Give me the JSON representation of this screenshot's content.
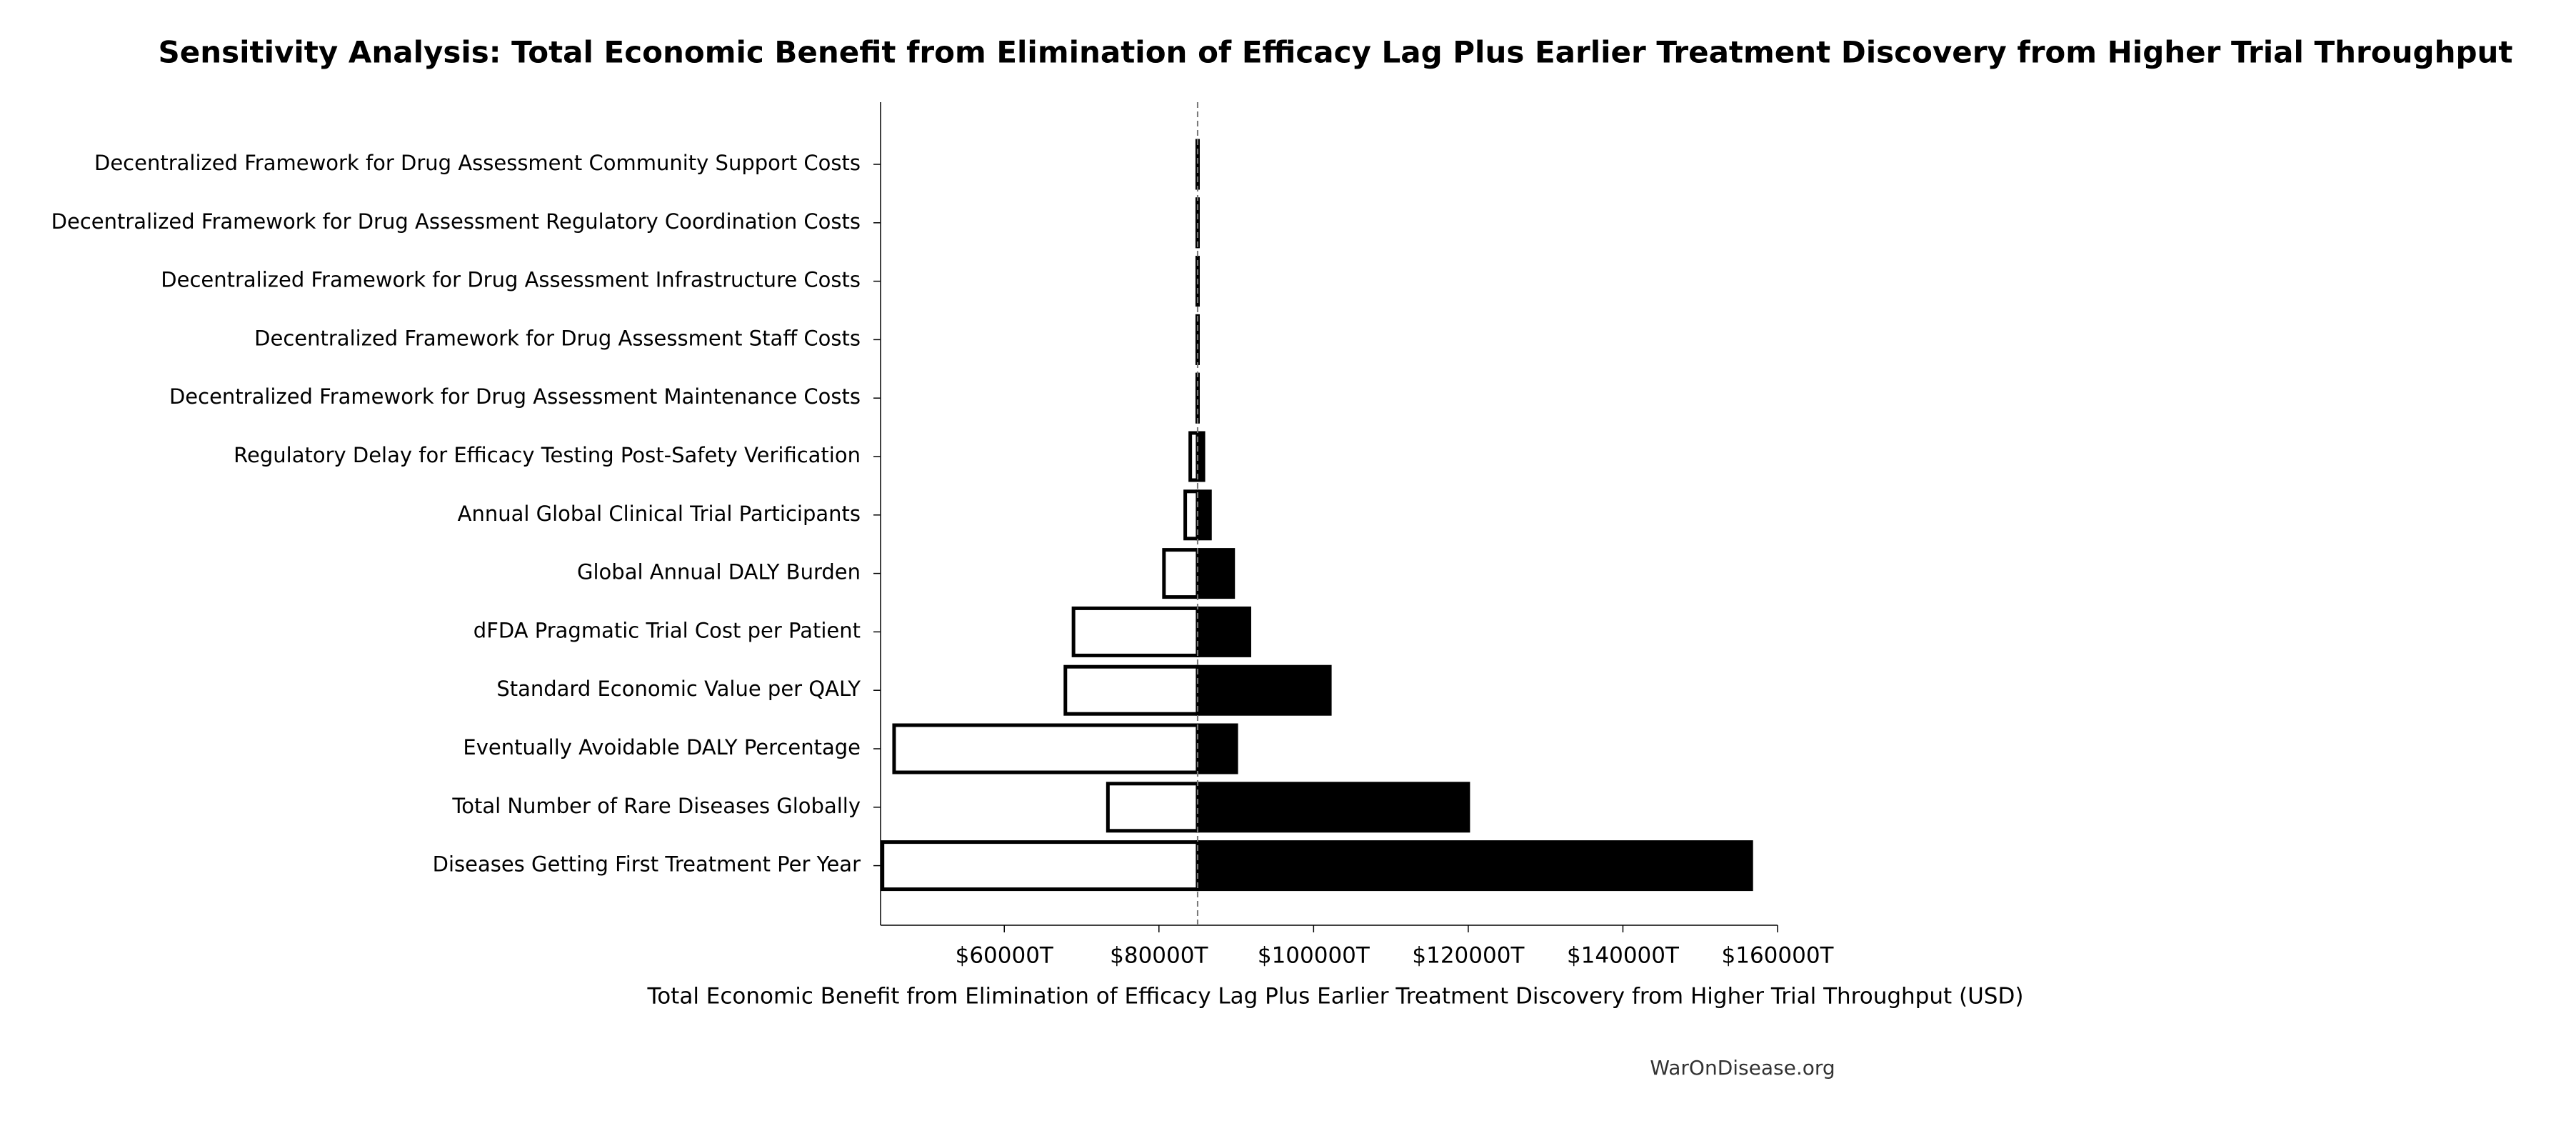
{
  "chart_data": {
    "type": "tornado",
    "title": "Sensitivity Analysis: Total Economic Benefit from Elimination of Efficacy Lag Plus Earlier Treatment Discovery from Higher Trial Throughput",
    "x_label": "Total Economic Benefit from Elimination of Efficacy Lag Plus Earlier Treatment Discovery from Higher Trial Throughput (USD)",
    "source": "WarOnDisease.org",
    "categories": [
      "Decentralized Framework for Drug Assessment Community Support Costs",
      "Decentralized Framework for Drug Assessment Regulatory Coordination Costs",
      "Decentralized Framework for Drug Assessment Infrastructure Costs",
      "Decentralized Framework for Drug Assessment Staff Costs",
      "Decentralized Framework for Drug Assessment Maintenance Costs",
      "Regulatory Delay for Efficacy Testing Post-Safety Verification",
      "Annual Global Clinical Trial Participants",
      "Global Annual DALY Burden",
      "dFDA Pragmatic Trial Cost per Patient",
      "Standard Economic Value per QALY",
      "Eventually Avoidable DALY Percentage",
      "Total Number of Rare Diseases Globally",
      "Diseases Getting First Treatment Per Year"
    ],
    "baseline": 85000,
    "low_values": [
      84950,
      84950,
      84950,
      84950,
      84950,
      84050,
      83400,
      80650,
      68950,
      67900,
      45750,
      73400,
      44250
    ],
    "high_values": [
      85050,
      85050,
      85050,
      85050,
      85050,
      85750,
      86600,
      89600,
      91700,
      102100,
      90000,
      120000,
      156600
    ],
    "low_color": "#ffffff",
    "high_color": "#000000",
    "xlim": [
      44000,
      160000
    ],
    "xticks": [
      {
        "value": 60000,
        "label": "$60000T"
      },
      {
        "value": 80000,
        "label": "$80000T"
      },
      {
        "value": 100000,
        "label": "$100000T"
      },
      {
        "value": 120000,
        "label": "$120000T"
      },
      {
        "value": 140000,
        "label": "$140000T"
      },
      {
        "value": 160000,
        "label": "$160000T"
      }
    ]
  }
}
